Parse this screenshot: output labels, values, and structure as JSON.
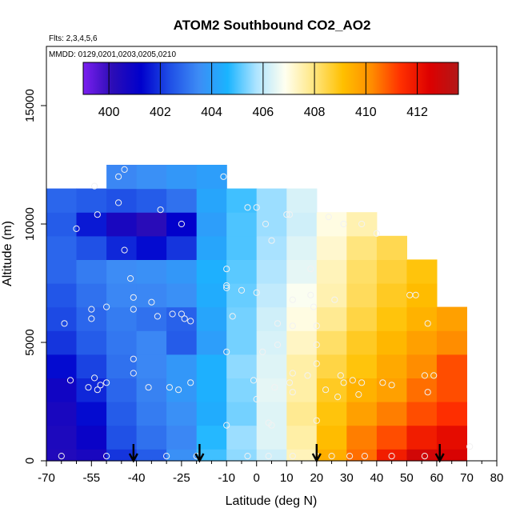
{
  "chart_data": {
    "type": "heatmap",
    "title": "ATOM2 Southbound CO2_AO2",
    "notes": [
      "Flts: 2,3,4,5,6",
      "MMDD: 0129,0201,0203,0205,0210"
    ],
    "xlabel": "Latitude (deg N)",
    "ylabel": "Altitude (m)",
    "xlim": [
      -70,
      80
    ],
    "ylim": [
      0,
      17500
    ],
    "x_ticks": [
      -70,
      -55,
      -40,
      -25,
      -10,
      0,
      10,
      20,
      30,
      40,
      50,
      60,
      70,
      80
    ],
    "x_minor_ticks": [
      -65,
      -60,
      -50,
      -45,
      -35,
      -30,
      -20,
      -15,
      -5,
      5,
      15,
      25,
      35,
      45,
      55,
      65,
      75
    ],
    "y_ticks": [
      0,
      5000,
      10000,
      15000
    ],
    "colorbar": {
      "range": [
        399,
        413.6
      ],
      "ticks": [
        400,
        402,
        404,
        406,
        408,
        410,
        412
      ],
      "colors": [
        "#7b1ff0",
        "#2c0db6",
        "#0000cc",
        "#1f4fe6",
        "#3d8cf5",
        "#1ab4ff",
        "#aee4ff",
        "#fffff0",
        "#ffe680",
        "#ffc000",
        "#ff8c00",
        "#ff3000",
        "#dd0000",
        "#b21818"
      ]
    },
    "field": {
      "lat": [
        -65,
        -55,
        -45,
        -35,
        -25,
        -15,
        -5,
        5,
        15,
        25,
        35,
        45,
        55,
        65
      ],
      "alt": [
        0,
        1000,
        2000,
        3000,
        4000,
        5000,
        6000,
        7000,
        8000,
        9000,
        10000,
        11000,
        12000
      ],
      "co2": [
        [
          400.4,
          400.6,
          402.0,
          402.6,
          403.6,
          404.9,
          405.5,
          406.2,
          407.4,
          409.5,
          410.6,
          411.8,
          412.8,
          412.6
        ],
        [
          400.5,
          401.0,
          402.4,
          403.0,
          403.4,
          404.7,
          405.6,
          406.4,
          407.6,
          409.2,
          410.4,
          411.0,
          411.8,
          412.2
        ],
        [
          400.6,
          401.4,
          402.6,
          403.2,
          403.6,
          404.4,
          405.3,
          406.4,
          407.8,
          409.0,
          409.8,
          410.4,
          411.0,
          411.4
        ],
        [
          400.8,
          401.8,
          402.8,
          403.3,
          403.8,
          404.5,
          405.4,
          406.5,
          407.6,
          408.8,
          409.4,
          409.8,
          410.6,
          411.0
        ],
        [
          401.4,
          402.2,
          403.0,
          403.4,
          403.8,
          404.5,
          405.5,
          406.4,
          407.6,
          408.5,
          409.0,
          409.6,
          410.2,
          411.0
        ],
        [
          402.0,
          402.6,
          403.1,
          403.4,
          402.6,
          404.0,
          405.3,
          406.3,
          407.3,
          408.2,
          408.8,
          409.3,
          409.8,
          410.2
        ],
        [
          402.3,
          402.8,
          403.2,
          403.0,
          402.7,
          404.2,
          405.3,
          406.2,
          407.0,
          407.8,
          408.5,
          409.0,
          409.4,
          409.8
        ],
        [
          402.5,
          403.0,
          403.4,
          403.4,
          403.6,
          404.4,
          405.2,
          406.0,
          406.8,
          407.5,
          408.3,
          408.8,
          409.2,
          null
        ],
        [
          402.8,
          403.2,
          403.5,
          403.6,
          403.8,
          404.5,
          405.1,
          405.8,
          406.5,
          407.4,
          408.2,
          408.6,
          409.0,
          null
        ],
        [
          402.8,
          402.4,
          401.8,
          401.4,
          402.0,
          404.2,
          405.0,
          405.7,
          406.4,
          407.2,
          408.0,
          408.4,
          null,
          null
        ],
        [
          402.6,
          401.6,
          400.6,
          400.2,
          401.2,
          404.0,
          405.0,
          405.6,
          406.2,
          407.0,
          407.5,
          null,
          null,
          null
        ],
        [
          402.8,
          402.6,
          402.4,
          402.6,
          403.0,
          404.2,
          404.9,
          405.6,
          406.3,
          null,
          null,
          null,
          null,
          null
        ],
        [
          null,
          null,
          403.4,
          403.6,
          403.8,
          404.0,
          null,
          null,
          null,
          null,
          null,
          null,
          null,
          null
        ]
      ]
    },
    "observations": [
      [
        -65,
        200
      ],
      [
        -62,
        3400
      ],
      [
        -64,
        5800
      ],
      [
        -60,
        9800
      ],
      [
        -56,
        3100
      ],
      [
        -54,
        3500
      ],
      [
        -53,
        3000
      ],
      [
        -52,
        3200
      ],
      [
        -55,
        6000
      ],
      [
        -55,
        6400
      ],
      [
        -54,
        11600
      ],
      [
        -53,
        10400
      ],
      [
        -50,
        3300
      ],
      [
        -50,
        6500
      ],
      [
        -50,
        200
      ],
      [
        -46,
        10900
      ],
      [
        -46,
        12000
      ],
      [
        -44,
        8900
      ],
      [
        -44,
        12300
      ],
      [
        -42,
        7700
      ],
      [
        -41,
        6400
      ],
      [
        -41,
        4300
      ],
      [
        -41,
        3700
      ],
      [
        -41,
        6900
      ],
      [
        -36,
        3100
      ],
      [
        -35,
        6700
      ],
      [
        -33,
        6100
      ],
      [
        -32,
        10600
      ],
      [
        -30,
        200
      ],
      [
        -29,
        3100
      ],
      [
        -28,
        6200
      ],
      [
        -26,
        3000
      ],
      [
        -25,
        6200
      ],
      [
        -25,
        10000
      ],
      [
        -24,
        6000
      ],
      [
        -22,
        3300
      ],
      [
        -22,
        5900
      ],
      [
        -20,
        200
      ],
      [
        -11,
        12000
      ],
      [
        -10,
        4600
      ],
      [
        -10,
        7300
      ],
      [
        -10,
        7400
      ],
      [
        -10,
        8100
      ],
      [
        -10,
        1500
      ],
      [
        -8,
        6100
      ],
      [
        -5,
        7200
      ],
      [
        -3,
        10700
      ],
      [
        -3,
        200
      ],
      [
        -1,
        3400
      ],
      [
        0,
        2600
      ],
      [
        0,
        7100
      ],
      [
        0,
        10700
      ],
      [
        2,
        4600
      ],
      [
        3,
        10000
      ],
      [
        4,
        200
      ],
      [
        4,
        1600
      ],
      [
        5,
        1500
      ],
      [
        5,
        9300
      ],
      [
        6,
        3100
      ],
      [
        7,
        4900
      ],
      [
        7,
        5800
      ],
      [
        10,
        10400
      ],
      [
        11,
        10400
      ],
      [
        11,
        3300
      ],
      [
        12,
        200
      ],
      [
        12,
        2900
      ],
      [
        12,
        5700
      ],
      [
        12,
        6800
      ],
      [
        12,
        3700
      ],
      [
        17,
        3600
      ],
      [
        18,
        8100
      ],
      [
        18,
        7000
      ],
      [
        19,
        6500
      ],
      [
        20,
        5700
      ],
      [
        20,
        4900
      ],
      [
        20,
        4100
      ],
      [
        20,
        1700
      ],
      [
        20,
        200
      ],
      [
        23,
        3000
      ],
      [
        24,
        10300
      ],
      [
        25,
        200
      ],
      [
        26,
        6800
      ],
      [
        27,
        2700
      ],
      [
        28,
        3600
      ],
      [
        29,
        3300
      ],
      [
        29,
        10000
      ],
      [
        31,
        200
      ],
      [
        32,
        3400
      ],
      [
        34,
        2800
      ],
      [
        35,
        3300
      ],
      [
        35,
        10000
      ],
      [
        36,
        200
      ],
      [
        40,
        9600
      ],
      [
        42,
        3300
      ],
      [
        45,
        3200
      ],
      [
        45,
        200
      ],
      [
        51,
        7000
      ],
      [
        53,
        7000
      ],
      [
        56,
        200
      ],
      [
        56,
        3600
      ],
      [
        57,
        2900
      ],
      [
        57,
        5800
      ],
      [
        59,
        3600
      ],
      [
        71,
        600
      ]
    ],
    "profile_markers_lat": [
      -41,
      -19,
      20,
      61
    ]
  }
}
